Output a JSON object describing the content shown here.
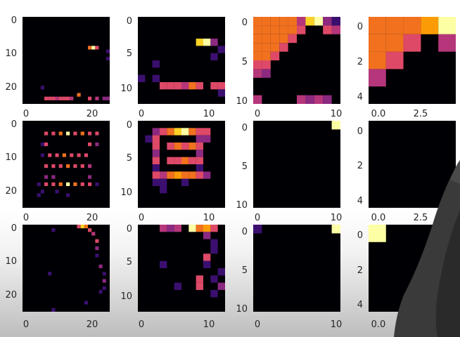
{
  "colors": {
    "background": "#000004",
    "purple": "#3b0f70",
    "magenta": "#8c2981",
    "pink": "#b5367a",
    "red": "#de4968",
    "orange": "#f1711f",
    "amber": "#fb9b06",
    "yellow": "#fcd225",
    "pale": "#fcffa4"
  },
  "panels": [
    {
      "id": "r1c1",
      "grid": [
        24,
        24
      ],
      "ytick_labels": [
        "0",
        "10",
        "20"
      ],
      "xtick_labels": [
        "0",
        "20"
      ],
      "show_xticks": true
    },
    {
      "id": "r1c2",
      "grid": [
        12,
        12
      ],
      "ytick_labels": [
        "0",
        "5",
        "10"
      ],
      "xtick_labels": [
        "0",
        "10"
      ],
      "show_xticks": true
    },
    {
      "id": "r1c3",
      "grid": [
        10,
        10
      ],
      "ytick_labels": [
        "0",
        "5",
        "10"
      ],
      "xtick_labels": [
        "0",
        "10"
      ],
      "show_xticks": true
    },
    {
      "id": "r1c4",
      "grid": [
        5,
        5
      ],
      "ytick_labels": [
        "0",
        "2",
        "4"
      ],
      "xtick_labels": [
        "0.0",
        "2.5"
      ],
      "show_xticks": true
    },
    {
      "id": "r2c1",
      "grid": [
        24,
        24
      ],
      "ytick_labels": [
        "0",
        "10",
        "20"
      ],
      "xtick_labels": [
        "0",
        "20"
      ],
      "show_xticks": true
    },
    {
      "id": "r2c2",
      "grid": [
        12,
        12
      ],
      "ytick_labels": [
        "0",
        "5",
        "10"
      ],
      "xtick_labels": [
        "0",
        "10"
      ],
      "show_xticks": true
    },
    {
      "id": "r2c3",
      "grid": [
        10,
        10
      ],
      "ytick_labels": [
        "0",
        "5",
        "10"
      ],
      "xtick_labels": [
        "0",
        "10"
      ],
      "show_xticks": true
    },
    {
      "id": "r2c4",
      "grid": [
        5,
        5
      ],
      "ytick_labels": [
        "0",
        "2",
        "4"
      ],
      "xtick_labels": [
        "0.0",
        "2.5"
      ],
      "show_xticks": true
    },
    {
      "id": "r3c1",
      "grid": [
        24,
        24
      ],
      "ytick_labels": [
        "0",
        "10",
        "20"
      ],
      "xtick_labels": [
        "0",
        "20"
      ],
      "show_xticks": true
    },
    {
      "id": "r3c2",
      "grid": [
        12,
        12
      ],
      "ytick_labels": [
        "0",
        "5",
        "10"
      ],
      "xtick_labels": [
        "0",
        "10"
      ],
      "show_xticks": true
    },
    {
      "id": "r3c3",
      "grid": [
        10,
        10
      ],
      "ytick_labels": [
        "0",
        "5",
        "10"
      ],
      "xtick_labels": [
        "0",
        "10"
      ],
      "show_xticks": true
    },
    {
      "id": "r3c4",
      "grid": [
        5,
        5
      ],
      "ytick_labels": [
        "0",
        "2",
        "4"
      ],
      "xtick_labels": [
        "0.0"
      ],
      "show_xticks": true
    }
  ]
}
